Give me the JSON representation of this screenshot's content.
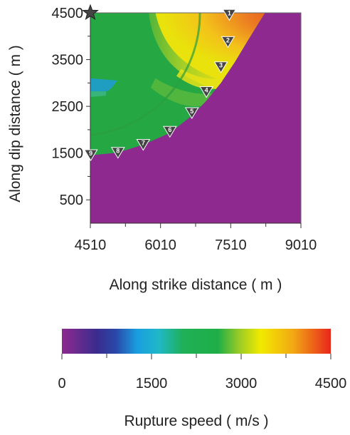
{
  "chart_data": {
    "type": "heatmap",
    "title": "",
    "xlabel": "Along strike distance ( m )",
    "ylabel": "Along dip distance ( m )",
    "xlim": [
      4510,
      9010
    ],
    "ylim": [
      0,
      4500
    ],
    "x_ticks": [
      "4510",
      "6010",
      "7510",
      "9010"
    ],
    "y_ticks": [
      "500",
      "1500",
      "2500",
      "3500",
      "4500"
    ],
    "hypocenter": {
      "x": 4510,
      "y": 4500,
      "symbol": "star"
    },
    "stations": [
      {
        "label": "1",
        "x": 7480,
        "y": 4480
      },
      {
        "label": "2",
        "x": 7450,
        "y": 3900
      },
      {
        "label": "3",
        "x": 7300,
        "y": 3360
      },
      {
        "label": "4",
        "x": 6990,
        "y": 2830
      },
      {
        "label": "5",
        "x": 6680,
        "y": 2380
      },
      {
        "label": "6",
        "x": 6210,
        "y": 1980
      },
      {
        "label": "7",
        "x": 5640,
        "y": 1700
      },
      {
        "label": "8",
        "x": 5100,
        "y": 1530
      },
      {
        "label": "9",
        "x": 4520,
        "y": 1480
      }
    ],
    "rupture_front": [
      {
        "x": 4510,
        "y": 1450
      },
      {
        "x": 5100,
        "y": 1510
      },
      {
        "x": 5640,
        "y": 1680
      },
      {
        "x": 6210,
        "y": 1930
      },
      {
        "x": 6680,
        "y": 2300
      },
      {
        "x": 6990,
        "y": 2620
      },
      {
        "x": 7300,
        "y": 3000
      },
      {
        "x": 7600,
        "y": 3450
      },
      {
        "x": 7900,
        "y": 3950
      },
      {
        "x": 8150,
        "y": 4350
      },
      {
        "x": 8240,
        "y": 4500
      }
    ],
    "colorbar": {
      "label": "Rupture speed ( m/s )",
      "min": 0,
      "max": 4500,
      "ticks": [
        "0",
        "1500",
        "3000",
        "4500"
      ],
      "colors": [
        "#8e2a8f",
        "#3a2c8e",
        "#1aa0e0",
        "#1fb14a",
        "#f2ea00",
        "#ee3b1f"
      ]
    },
    "colors": {
      "unruptured": "#8e2a8f",
      "subshear": "#25a844",
      "supershear_high": "#ea6a20",
      "supershear_mid": "#f4c51a",
      "transition": "#9ccd22",
      "slow_patch": "#1f9ccf",
      "station_fill": "#444444"
    }
  }
}
